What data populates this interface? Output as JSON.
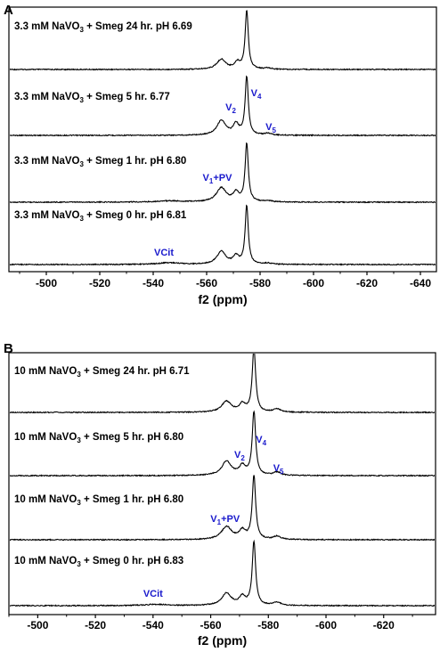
{
  "chart_data": [
    {
      "type": "line",
      "panel": "A",
      "xlabel": "f2 (ppm)",
      "xlim": [
        -486,
        -646
      ],
      "x_ticks": [
        -500,
        -520,
        -540,
        -560,
        -580,
        -600,
        -620,
        -640
      ],
      "tick_labels": [
        "-500",
        "-520",
        "-540",
        "-560",
        "-580",
        "-600",
        "-620",
        "-640"
      ],
      "series": [
        {
          "name": "3.3 mM NaVO3 + Smeg 24 hr. pH 6.69",
          "label_parts": {
            "conc": "3.3 mM NaVO",
            "sub": "3",
            "rest": " + Smeg 24 hr. pH 6.69"
          },
          "peaks": [
            {
              "x": -565.5,
              "h": 0.17,
              "w": 2.0
            },
            {
              "x": -571.5,
              "h": 0.11,
              "w": 1.3
            },
            {
              "x": -575,
              "h": 1.0,
              "w": 0.7
            },
            {
              "x": -583,
              "h": 0.02,
              "w": 1.5
            }
          ]
        },
        {
          "name": "3.3 mM NaVO3 + Smeg 5 hr. 6.77",
          "label_parts": {
            "conc": "3.3 mM NaVO",
            "sub": "3",
            "rest": " + Smeg 5 hr. 6.77"
          },
          "peaks": [
            {
              "x": -565.5,
              "h": 0.25,
              "w": 2.0
            },
            {
              "x": -571,
              "h": 0.18,
              "w": 1.3
            },
            {
              "x": -575,
              "h": 1.0,
              "w": 0.7
            },
            {
              "x": -583,
              "h": 0.03,
              "w": 1.5
            }
          ]
        },
        {
          "name": "3.3 mM NaVO3 + Smeg 1 hr. pH 6.80",
          "label_parts": {
            "conc": "3.3 mM NaVO",
            "sub": "3",
            "rest": " + Smeg 1 hr. pH 6.80"
          },
          "peaks": [
            {
              "x": -546,
              "h": 0.02,
              "w": 6.0
            },
            {
              "x": -565.5,
              "h": 0.24,
              "w": 2.2
            },
            {
              "x": -571,
              "h": 0.15,
              "w": 1.3
            },
            {
              "x": -575,
              "h": 1.0,
              "w": 0.7
            },
            {
              "x": -583,
              "h": 0.02,
              "w": 1.5
            }
          ]
        },
        {
          "name": "3.3 mM NaVO3 + Smeg 0 hr. pH 6.81",
          "label_parts": {
            "conc": "3.3 mM NaVO",
            "sub": "3",
            "rest": " + Smeg 0 hr. pH 6.81"
          },
          "peaks": [
            {
              "x": -546,
              "h": 0.03,
              "w": 5.0
            },
            {
              "x": -565.5,
              "h": 0.22,
              "w": 2.0
            },
            {
              "x": -571,
              "h": 0.13,
              "w": 1.3
            },
            {
              "x": -575,
              "h": 1.0,
              "w": 0.7
            },
            {
              "x": -583,
              "h": 0.02,
              "w": 1.5
            }
          ]
        }
      ],
      "annotations": [
        {
          "trace": 1,
          "text": "V",
          "sub": "2",
          "x": -569
        },
        {
          "trace": 1,
          "text": "V",
          "sub": "4",
          "x": -578.5
        },
        {
          "trace": 1,
          "text": "V",
          "sub": "5",
          "x": -584
        },
        {
          "trace": 2,
          "text": "V",
          "sub": "1",
          "after": "+PV",
          "x": -564
        },
        {
          "trace": 3,
          "text": "VCit",
          "sub": "",
          "x": -544
        }
      ]
    },
    {
      "type": "line",
      "panel": "B",
      "xlabel": "f2 (ppm)",
      "xlim": [
        -490,
        -638
      ],
      "x_ticks": [
        -500,
        -520,
        -540,
        -560,
        -580,
        -600,
        -620
      ],
      "tick_labels": [
        "-500",
        "-520",
        "-540",
        "-560",
        "-580",
        "-600",
        "-620"
      ],
      "series": [
        {
          "name": "10 mM NaVO3 + Smeg 24 hr. pH 6.71",
          "label_parts": {
            "conc": "10 mM NaVO",
            "sub": "3",
            "rest": " + Smeg 24 hr. pH 6.71"
          },
          "peaks": [
            {
              "x": -565.5,
              "h": 0.17,
              "w": 2.0
            },
            {
              "x": -571,
              "h": 0.12,
              "w": 1.3
            },
            {
              "x": -575,
              "h": 1.0,
              "w": 0.7
            },
            {
              "x": -583,
              "h": 0.05,
              "w": 1.5
            }
          ]
        },
        {
          "name": "10 mM NaVO3 + Smeg 5 hr. pH 6.80",
          "label_parts": {
            "conc": "10 mM NaVO",
            "sub": "3",
            "rest": " + Smeg 5 hr. pH 6.80"
          },
          "peaks": [
            {
              "x": -565.5,
              "h": 0.22,
              "w": 2.0
            },
            {
              "x": -571,
              "h": 0.14,
              "w": 1.3
            },
            {
              "x": -575,
              "h": 1.0,
              "w": 0.7
            },
            {
              "x": -583,
              "h": 0.05,
              "w": 1.5
            }
          ]
        },
        {
          "name": "10 mM NaVO3 + Smeg 1 hr. pH 6.80",
          "label_parts": {
            "conc": "10 mM NaVO",
            "sub": "3",
            "rest": " + Smeg 1 hr. pH 6.80"
          },
          "peaks": [
            {
              "x": -565.5,
              "h": 0.2,
              "w": 2.2
            },
            {
              "x": -571,
              "h": 0.13,
              "w": 1.3
            },
            {
              "x": -575,
              "h": 1.0,
              "w": 0.7
            },
            {
              "x": -583,
              "h": 0.05,
              "w": 1.5
            }
          ]
        },
        {
          "name": "10 mM NaVO3 + Smeg 0 hr. pH 6.83",
          "label_parts": {
            "conc": "10 mM NaVO",
            "sub": "3",
            "rest": " + Smeg 0 hr. pH 6.83"
          },
          "peaks": [
            {
              "x": -541,
              "h": 0.02,
              "w": 5.0
            },
            {
              "x": -565.5,
              "h": 0.19,
              "w": 2.0
            },
            {
              "x": -571,
              "h": 0.13,
              "w": 1.3
            },
            {
              "x": -575,
              "h": 1.0,
              "w": 0.7
            },
            {
              "x": -583,
              "h": 0.05,
              "w": 1.5
            }
          ]
        }
      ],
      "annotations": [
        {
          "trace": 1,
          "text": "V",
          "sub": "2",
          "x": -570
        },
        {
          "trace": 1,
          "text": "V",
          "sub": "4",
          "x": -577.5
        },
        {
          "trace": 1,
          "text": "V",
          "sub": "5",
          "x": -583.5
        },
        {
          "trace": 2,
          "text": "V",
          "sub": "1",
          "after": "+PV",
          "x": -565
        },
        {
          "trace": 3,
          "text": "VCit",
          "sub": "",
          "x": -540
        }
      ]
    }
  ]
}
